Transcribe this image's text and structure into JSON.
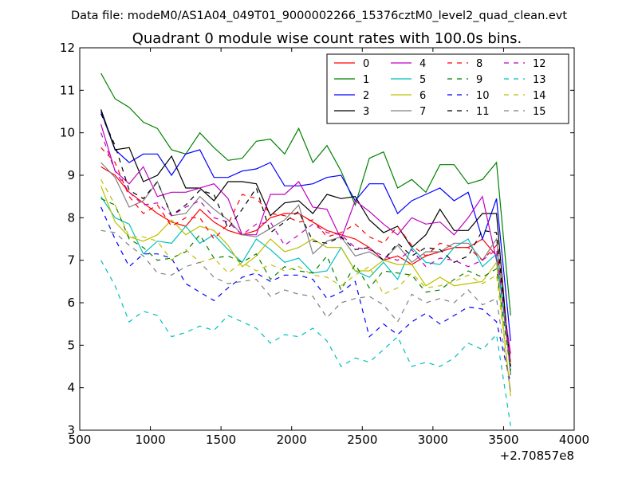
{
  "header": {
    "data_file": "Data file: modeM0/AS1A04_049T01_9000002266_15376cztM0_level2_quad_clean.evt",
    "title": "Quadrant 0 module wise count rates with 100.0s bins."
  },
  "chart_data": {
    "type": "line",
    "title": "Quadrant 0 module wise count rates with 100.0s bins.",
    "xlabel": "",
    "ylabel": "",
    "x_offset_label": "+2.70857e8",
    "xlim": [
      500,
      4000
    ],
    "ylim": [
      3,
      12
    ],
    "xticks": [
      500,
      1000,
      1500,
      2000,
      2500,
      3000,
      3500,
      4000
    ],
    "yticks": [
      3,
      4,
      5,
      6,
      7,
      8,
      9,
      10,
      11,
      12
    ],
    "grid": false,
    "legend_placement": "top-right",
    "legend_columns": 4,
    "x": [
      650,
      750,
      850,
      950,
      1050,
      1150,
      1250,
      1350,
      1450,
      1550,
      1650,
      1750,
      1850,
      1950,
      2050,
      2150,
      2250,
      2350,
      2450,
      2550,
      2650,
      2750,
      2850,
      2950,
      3050,
      3150,
      3250,
      3350,
      3450,
      3550
    ],
    "series": [
      {
        "name": "0",
        "color": "#ff0000",
        "dash": "solid",
        "values": [
          9.2,
          9.0,
          8.6,
          8.35,
          8.1,
          7.9,
          7.8,
          8.2,
          7.9,
          7.7,
          7.6,
          7.7,
          8.0,
          8.1,
          8.1,
          7.9,
          7.7,
          7.6,
          7.5,
          7.3,
          7.0,
          7.1,
          6.9,
          7.1,
          7.2,
          7.3,
          7.3,
          7.5,
          7.1,
          4.6
        ]
      },
      {
        "name": "1",
        "color": "#008000",
        "dash": "solid",
        "values": [
          11.4,
          10.8,
          10.6,
          10.25,
          10.1,
          9.6,
          9.5,
          10.0,
          9.65,
          9.35,
          9.4,
          9.8,
          9.85,
          9.5,
          10.1,
          9.3,
          9.7,
          9.1,
          8.3,
          9.4,
          9.55,
          8.7,
          8.9,
          8.6,
          9.25,
          9.25,
          8.8,
          8.9,
          9.3,
          5.7
        ]
      },
      {
        "name": "2",
        "color": "#0000ff",
        "dash": "solid",
        "values": [
          10.5,
          9.6,
          9.3,
          9.5,
          9.5,
          9.0,
          9.5,
          9.6,
          8.95,
          8.95,
          9.1,
          9.15,
          9.3,
          8.75,
          8.75,
          8.8,
          8.95,
          9.0,
          8.4,
          8.8,
          8.8,
          8.1,
          8.4,
          8.55,
          8.7,
          8.4,
          8.6,
          7.5,
          8.45,
          5.1
        ]
      },
      {
        "name": "3",
        "color": "#000000",
        "dash": "solid",
        "values": [
          10.55,
          9.6,
          9.65,
          8.85,
          9.0,
          9.45,
          8.7,
          8.7,
          8.4,
          8.85,
          8.85,
          8.8,
          8.05,
          8.35,
          8.4,
          8.1,
          8.55,
          8.45,
          8.5,
          7.95,
          7.65,
          7.8,
          7.3,
          7.6,
          8.2,
          7.7,
          7.7,
          8.1,
          8.1,
          4.3
        ]
      },
      {
        "name": "4",
        "color": "#bf00bf",
        "dash": "solid",
        "values": [
          10.2,
          9.1,
          8.8,
          9.2,
          8.5,
          8.6,
          8.6,
          8.7,
          8.8,
          8.45,
          7.6,
          7.6,
          8.55,
          8.55,
          8.85,
          8.25,
          8.2,
          7.5,
          8.4,
          8.15,
          7.85,
          7.6,
          8.0,
          7.85,
          7.9,
          7.6,
          8.0,
          8.5,
          7.0,
          4.8
        ]
      },
      {
        "name": "5",
        "color": "#00bfbf",
        "dash": "solid",
        "values": [
          8.5,
          8.0,
          7.85,
          7.15,
          7.45,
          7.4,
          7.8,
          7.4,
          7.6,
          7.25,
          6.95,
          7.5,
          7.25,
          6.95,
          7.05,
          6.7,
          6.75,
          7.3,
          6.75,
          6.6,
          6.95,
          6.55,
          7.3,
          6.95,
          6.9,
          7.3,
          7.5,
          6.85,
          7.15,
          4.4
        ]
      },
      {
        "name": "6",
        "color": "#bfbf00",
        "dash": "solid",
        "values": [
          8.75,
          7.9,
          7.55,
          7.45,
          7.6,
          7.95,
          7.6,
          7.8,
          7.7,
          7.35,
          6.85,
          7.1,
          7.5,
          7.2,
          7.3,
          7.5,
          7.3,
          7.3,
          6.75,
          6.75,
          7.0,
          6.9,
          6.9,
          6.4,
          6.6,
          6.4,
          6.45,
          6.5,
          6.95,
          3.8
        ]
      },
      {
        "name": "7",
        "color": "#808080",
        "dash": "solid",
        "values": [
          9.3,
          8.95,
          8.25,
          8.4,
          8.85,
          8.05,
          8.1,
          8.5,
          8.2,
          7.95,
          7.6,
          7.55,
          7.75,
          7.95,
          8.3,
          7.15,
          7.45,
          7.55,
          7.1,
          7.2,
          7.0,
          7.35,
          6.95,
          7.2,
          7.2,
          7.4,
          7.4,
          7.0,
          7.5,
          4.3
        ]
      },
      {
        "name": "8",
        "color": "#ff0000",
        "dash": "dashed",
        "values": [
          9.65,
          9.3,
          8.5,
          8.1,
          8.3,
          7.8,
          8.0,
          8.0,
          7.5,
          7.85,
          8.55,
          8.45,
          8.1,
          8.05,
          7.9,
          7.95,
          7.55,
          7.65,
          7.85,
          7.55,
          7.4,
          7.8,
          7.35,
          7.1,
          7.4,
          7.3,
          7.3,
          7.0,
          7.35,
          4.5
        ]
      },
      {
        "name": "9",
        "color": "#008000",
        "dash": "dashed",
        "values": [
          8.45,
          8.3,
          7.5,
          7.3,
          7.0,
          7.05,
          7.2,
          7.6,
          7.05,
          7.1,
          6.95,
          7.15,
          6.55,
          6.85,
          6.75,
          6.7,
          7.1,
          6.3,
          6.9,
          6.35,
          6.75,
          6.7,
          6.65,
          6.25,
          6.3,
          6.55,
          6.75,
          6.6,
          6.8,
          4.4
        ]
      },
      {
        "name": "10",
        "color": "#0000ff",
        "dash": "dashed",
        "values": [
          8.25,
          7.5,
          6.85,
          7.15,
          7.15,
          7.05,
          6.45,
          6.25,
          6.05,
          6.35,
          6.6,
          6.7,
          6.5,
          6.65,
          6.65,
          6.55,
          6.1,
          6.25,
          6.5,
          5.2,
          5.5,
          5.25,
          5.55,
          5.75,
          5.5,
          5.7,
          5.9,
          5.85,
          5.55,
          4.1
        ]
      },
      {
        "name": "11",
        "color": "#000000",
        "dash": "dashed",
        "values": [
          10.45,
          9.7,
          8.65,
          8.45,
          8.85,
          8.05,
          8.3,
          8.65,
          8.55,
          7.75,
          8.2,
          8.7,
          7.65,
          7.9,
          8.15,
          7.45,
          7.4,
          7.55,
          7.25,
          7.3,
          7.0,
          7.4,
          7.1,
          7.3,
          7.25,
          6.95,
          7.1,
          7.7,
          7.65,
          4.5
        ]
      },
      {
        "name": "12",
        "color": "#bf00bf",
        "dash": "dashed",
        "values": [
          10.0,
          9.1,
          8.6,
          8.3,
          8.35,
          8.05,
          8.25,
          8.4,
          8.0,
          7.9,
          7.6,
          7.85,
          7.9,
          7.35,
          7.6,
          7.85,
          7.65,
          7.6,
          7.3,
          7.25,
          7.1,
          7.0,
          7.25,
          6.85,
          7.05,
          7.0,
          6.85,
          7.0,
          7.25,
          4.55
        ]
      },
      {
        "name": "13",
        "color": "#00bfbf",
        "dash": "dashed",
        "values": [
          7.0,
          6.4,
          5.55,
          5.8,
          5.7,
          5.2,
          5.3,
          5.45,
          5.35,
          5.7,
          5.55,
          5.4,
          5.05,
          5.25,
          5.2,
          5.4,
          5.1,
          4.5,
          4.7,
          4.6,
          4.9,
          5.2,
          4.5,
          4.6,
          4.5,
          4.7,
          5.05,
          4.9,
          5.25,
          3.1
        ]
      },
      {
        "name": "14",
        "color": "#bfbf00",
        "dash": "dashed",
        "values": [
          8.9,
          8.3,
          7.55,
          7.55,
          7.45,
          7.0,
          7.25,
          6.95,
          7.05,
          6.7,
          6.95,
          6.75,
          6.9,
          6.75,
          6.85,
          6.65,
          6.6,
          6.4,
          6.65,
          6.85,
          6.2,
          6.35,
          6.7,
          6.35,
          6.4,
          6.5,
          6.65,
          6.45,
          6.65,
          3.9
        ]
      },
      {
        "name": "15",
        "color": "#808080",
        "dash": "dashed",
        "values": [
          7.7,
          7.65,
          7.35,
          7.1,
          6.7,
          6.65,
          6.85,
          6.95,
          6.6,
          6.45,
          6.5,
          6.55,
          6.15,
          6.3,
          6.2,
          6.15,
          5.65,
          6.0,
          6.1,
          6.15,
          5.95,
          5.55,
          6.2,
          6.0,
          6.1,
          6.0,
          6.3,
          5.95,
          6.1,
          3.9
        ]
      }
    ]
  }
}
